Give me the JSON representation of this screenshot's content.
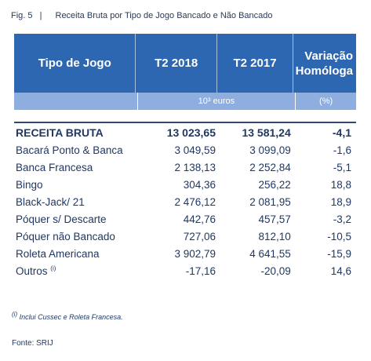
{
  "caption": {
    "fig": "Fig. 5",
    "sep": "|",
    "title": "Receita Bruta por Tipo de Jogo Bancado e Não Bancado"
  },
  "header": {
    "col1": "Tipo de Jogo",
    "col2": "T2 2018",
    "col3": "T2 2017",
    "col4_line1": "Variação",
    "col4_line2": "Homóloga"
  },
  "units": {
    "money": "10³ euros",
    "pct": "(%)"
  },
  "rows": [
    {
      "name": "RECEITA BRUTA",
      "t2018": "13 023,65",
      "t2017": "13 581,24",
      "var": "-4,1"
    },
    {
      "name": "Bacará Ponto & Banca",
      "t2018": "3 049,59",
      "t2017": "3 099,09",
      "var": "-1,6"
    },
    {
      "name": "Banca Francesa",
      "t2018": "2 138,13",
      "t2017": "2 252,84",
      "var": "-5,1"
    },
    {
      "name": "Bingo",
      "t2018": "304,36",
      "t2017": "256,22",
      "var": "18,8"
    },
    {
      "name": "Black-Jack/ 21",
      "t2018": "2 476,12",
      "t2017": "2 081,95",
      "var": "18,9"
    },
    {
      "name": "Póquer s/ Descarte",
      "t2018": "442,76",
      "t2017": "457,57",
      "var": "-3,2"
    },
    {
      "name": "Póquer não Bancado",
      "t2018": "727,06",
      "t2017": "812,10",
      "var": "-10,5"
    },
    {
      "name": "Roleta Americana",
      "t2018": "3 902,79",
      "t2017": "4 641,55",
      "var": "-15,9"
    },
    {
      "name": "Outros",
      "sup": "(i)",
      "t2018": "-17,16",
      "t2017": "-20,09",
      "var": "14,6"
    }
  ],
  "footnote": {
    "mark": "(i)",
    "text": " Inclui Cussec e Roleta Francesa."
  },
  "source": "Fonte: SRIJ"
}
